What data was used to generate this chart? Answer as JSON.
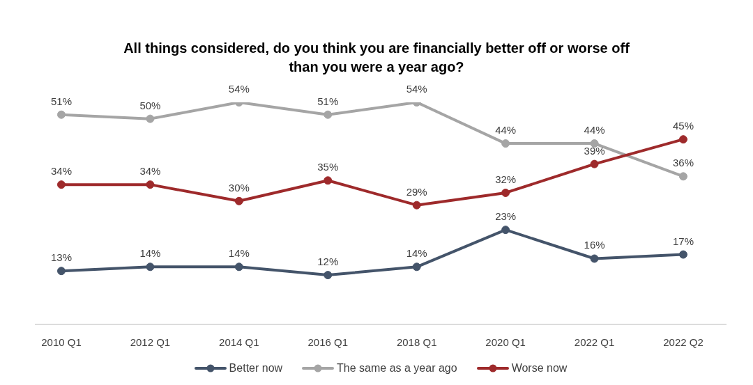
{
  "chart_data": {
    "type": "line",
    "title": "All things considered, do you think you are financially better off or worse off than you were a year ago?",
    "categories": [
      "2010 Q1",
      "2012 Q1",
      "2014 Q1",
      "2016 Q1",
      "2018 Q1",
      "2020 Q1",
      "2022 Q1",
      "2022 Q2"
    ],
    "series": [
      {
        "name": "Better now",
        "color": "#44546a",
        "values": [
          13,
          14,
          14,
          12,
          14,
          23,
          16,
          17
        ],
        "value_labels": [
          "13%",
          "14%",
          "14%",
          "12%",
          "14%",
          "23%",
          "16%",
          "17%"
        ]
      },
      {
        "name": "The same as a year ago",
        "color": "#a5a5a5",
        "values": [
          51,
          50,
          54,
          51,
          54,
          44,
          44,
          36
        ],
        "value_labels": [
          "51%",
          "50%",
          "54%",
          "51%",
          "54%",
          "44%",
          "44%",
          "36%"
        ]
      },
      {
        "name": "Worse now",
        "color": "#9e2a2b",
        "values": [
          34,
          34,
          30,
          35,
          29,
          32,
          39,
          45
        ],
        "value_labels": [
          "34%",
          "34%",
          "30%",
          "35%",
          "29%",
          "32%",
          "39%",
          "45%"
        ]
      }
    ],
    "marker": "circle",
    "line_style": "solid",
    "legend": "bottom",
    "tick_labels": "x"
  }
}
